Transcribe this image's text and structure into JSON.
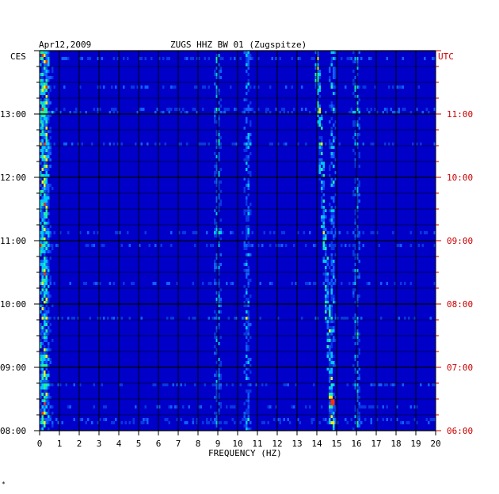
{
  "header": {
    "date": "Apr12,2009",
    "station": "ZUGS HHZ BW 01 (Zugspitze)",
    "left_label": "CES",
    "right_label": "UTC"
  },
  "footer_mark": "*",
  "colors": {
    "background": "#0000c8",
    "grid": "#000000",
    "left_ticks_text": "#000000",
    "right_ticks_text": "#cc0000"
  },
  "chart_data": {
    "type": "heatmap",
    "title": "ZUGS HHZ BW 01 (Zugspitze)",
    "xlabel": "FREQUENCY (HZ)",
    "xlim": [
      0,
      20
    ],
    "x_ticks": [
      "0",
      "1",
      "2",
      "3",
      "4",
      "5",
      "6",
      "7",
      "8",
      "9",
      "10",
      "11",
      "12",
      "13",
      "14",
      "15",
      "16",
      "17",
      "18",
      "19",
      "20"
    ],
    "y_ticks_local": [
      "13:00",
      "12:00",
      "11:00",
      "10:00",
      "09:00",
      "08:00"
    ],
    "y_ticks_utc": [
      "11:00",
      "10:00",
      "09:00",
      "08:00",
      "07:00",
      "06:00"
    ],
    "time_range_local": [
      "08:00",
      "14:00"
    ],
    "time_range_utc": [
      "06:00",
      "12:00"
    ],
    "persistent_lines_hz": [
      0.3,
      9.0,
      10.5,
      14.8,
      16.0
    ],
    "drifting_line_hz_range": [
      14.0,
      14.8
    ]
  }
}
